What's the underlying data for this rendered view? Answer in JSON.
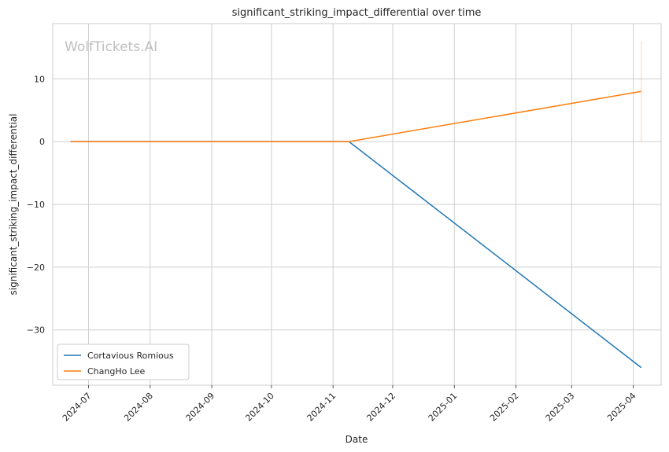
{
  "chart_data": {
    "type": "line",
    "title": "significant_striking_impact_differential over time",
    "xlabel": "Date",
    "ylabel": "significant_striking_impact_differential",
    "watermark": "WolfTickets.AI",
    "x_ticks": [
      "2024-07-01",
      "2024-08-01",
      "2024-09-01",
      "2024-10-01",
      "2024-11-01",
      "2024-12-01",
      "2025-01-01",
      "2025-02-01",
      "2025-03-01",
      "2025-04-01"
    ],
    "x_tick_labels": [
      "2024-07",
      "2024-08",
      "2024-09",
      "2024-10",
      "2024-11",
      "2024-12",
      "2025-01",
      "2025-02",
      "2025-03",
      "2025-04"
    ],
    "y_ticks": [
      10,
      0,
      -10,
      -20,
      -30
    ],
    "y_tick_labels": [
      "10",
      "0",
      "−10",
      "−20",
      "−30"
    ],
    "xlim": [
      "2024-06-13",
      "2025-04-15"
    ],
    "ylim": [
      -38.8,
      18.8
    ],
    "grid": true,
    "legend_position": "lower-left",
    "series": [
      {
        "name": "Cortavious Romious",
        "color": "#1f77b4",
        "points": [
          {
            "x": "2024-06-22",
            "y": 0
          },
          {
            "x": "2024-11-09",
            "y": 0
          },
          {
            "x": "2025-04-05",
            "y": -36
          }
        ]
      },
      {
        "name": "ChangHo Lee",
        "color": "#ff7f0e",
        "points": [
          {
            "x": "2024-06-22",
            "y": 0
          },
          {
            "x": "2024-11-09",
            "y": 0
          },
          {
            "x": "2025-04-05",
            "y": 8
          }
        ],
        "error_bar": {
          "x": "2025-04-05",
          "low": 0,
          "high": 16
        }
      }
    ]
  }
}
